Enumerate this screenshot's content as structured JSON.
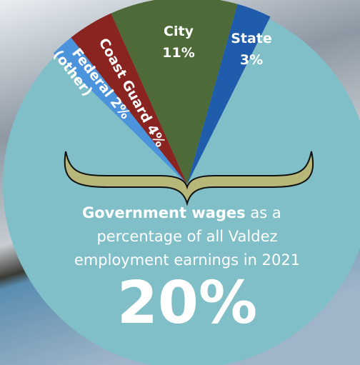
{
  "chart_data": {
    "type": "pie",
    "categories": [
      "State",
      "City",
      "Coast Guard",
      "Federal"
    ],
    "sublabels": [
      null,
      null,
      null,
      "(other)"
    ],
    "values": [
      3,
      11,
      4,
      2
    ],
    "value_labels": [
      "3%",
      "11%",
      "4%",
      "2%"
    ],
    "colors": [
      "#1f5cab",
      "#4e6a38",
      "#8a2420",
      "#4b94dc"
    ],
    "caption": {
      "bold": "Government wages",
      "rest": "as a",
      "line2": "percentage of all Valdez",
      "line3": "employment earnings in 2021"
    },
    "headline": "20%"
  }
}
